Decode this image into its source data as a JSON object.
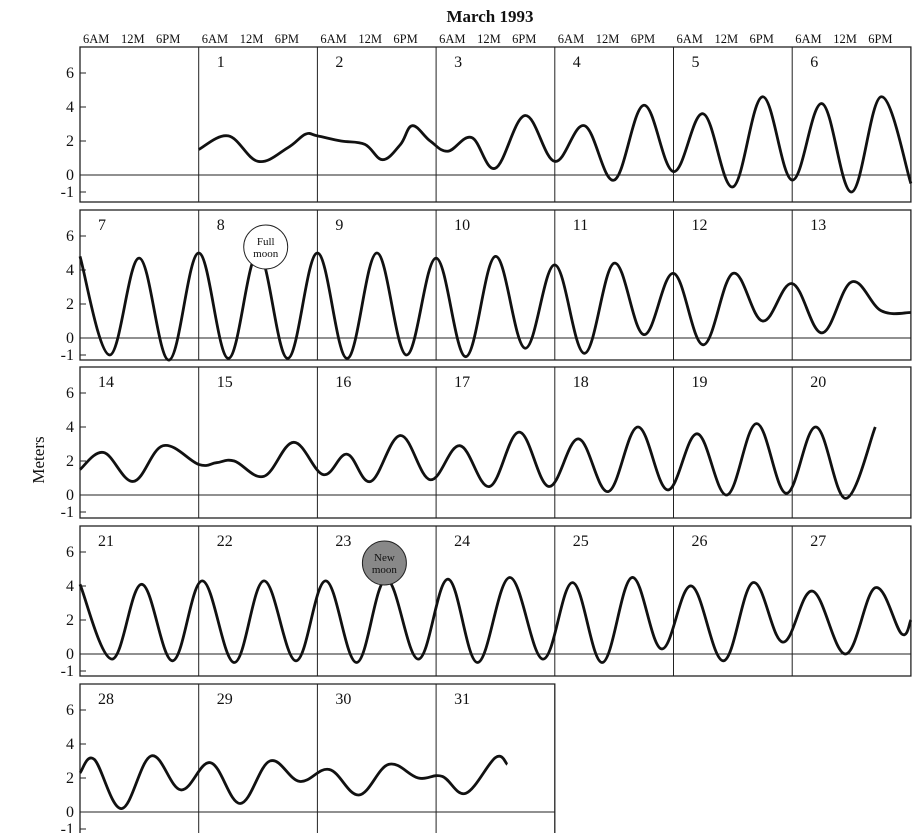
{
  "chart_data": {
    "type": "line",
    "title": "March 1993",
    "ylabel": "Meters",
    "ylim": [
      -1.5,
      7
    ],
    "yticks": [
      "6",
      "4",
      "2",
      "0",
      "-1"
    ],
    "time_labels": [
      "6AM",
      "12M",
      "6PM"
    ],
    "unit": "meters",
    "moon_events": [
      {
        "day": 8,
        "label_lines": [
          "Full",
          "moon"
        ],
        "fill": "#ffffff"
      },
      {
        "day": 23,
        "label_lines": [
          "New",
          "moon"
        ],
        "fill": "#888888"
      }
    ],
    "weeks": [
      {
        "days": [
          "",
          "1",
          "2",
          "3",
          "4",
          "5",
          "6"
        ],
        "curve_start_day_index": 1,
        "points": [
          [
            1.0,
            1.5
          ],
          [
            1.25,
            2.3
          ],
          [
            1.5,
            0.8
          ],
          [
            1.75,
            1.6
          ],
          [
            1.9,
            2.4
          ],
          [
            2.0,
            2.3
          ],
          [
            2.2,
            2.0
          ],
          [
            2.4,
            1.8
          ],
          [
            2.55,
            0.9
          ],
          [
            2.7,
            1.8
          ],
          [
            2.8,
            2.9
          ],
          [
            2.95,
            2.0
          ],
          [
            3.1,
            1.4
          ],
          [
            3.3,
            2.2
          ],
          [
            3.5,
            0.4
          ],
          [
            3.75,
            3.5
          ],
          [
            4.0,
            0.8
          ],
          [
            4.25,
            2.9
          ],
          [
            4.5,
            -0.3
          ],
          [
            4.75,
            4.1
          ],
          [
            5.0,
            0.2
          ],
          [
            5.25,
            3.6
          ],
          [
            5.5,
            -0.7
          ],
          [
            5.75,
            4.6
          ],
          [
            6.0,
            -0.3
          ],
          [
            6.25,
            4.2
          ],
          [
            6.5,
            -1.0
          ],
          [
            6.75,
            4.6
          ],
          [
            7.0,
            -0.5
          ]
        ]
      },
      {
        "days": [
          "7",
          "8",
          "9",
          "10",
          "11",
          "12",
          "13"
        ],
        "curve_start_day_index": 0,
        "points": [
          [
            0.0,
            4.8
          ],
          [
            0.25,
            -1.0
          ],
          [
            0.5,
            4.7
          ],
          [
            0.75,
            -1.3
          ],
          [
            1.0,
            5.0
          ],
          [
            1.25,
            -1.2
          ],
          [
            1.5,
            5.0
          ],
          [
            1.75,
            -1.2
          ],
          [
            2.0,
            5.0
          ],
          [
            2.25,
            -1.2
          ],
          [
            2.5,
            5.0
          ],
          [
            2.75,
            -1.0
          ],
          [
            3.0,
            4.7
          ],
          [
            3.25,
            -1.1
          ],
          [
            3.5,
            4.8
          ],
          [
            3.75,
            -0.6
          ],
          [
            4.0,
            4.3
          ],
          [
            4.25,
            -0.9
          ],
          [
            4.5,
            4.4
          ],
          [
            4.75,
            0.2
          ],
          [
            5.0,
            3.8
          ],
          [
            5.25,
            -0.4
          ],
          [
            5.5,
            3.8
          ],
          [
            5.75,
            1.0
          ],
          [
            6.0,
            3.2
          ],
          [
            6.25,
            0.3
          ],
          [
            6.5,
            3.3
          ],
          [
            6.75,
            1.6
          ],
          [
            7.0,
            1.5
          ]
        ]
      },
      {
        "days": [
          "14",
          "15",
          "16",
          "17",
          "18",
          "19",
          "20"
        ],
        "curve_start_day_index": 0,
        "points": [
          [
            0.0,
            1.5
          ],
          [
            0.2,
            2.5
          ],
          [
            0.45,
            0.8
          ],
          [
            0.7,
            2.9
          ],
          [
            1.0,
            1.8
          ],
          [
            1.15,
            1.9
          ],
          [
            1.3,
            2.0
          ],
          [
            1.55,
            1.1
          ],
          [
            1.8,
            3.1
          ],
          [
            2.05,
            1.2
          ],
          [
            2.25,
            2.4
          ],
          [
            2.45,
            0.8
          ],
          [
            2.7,
            3.5
          ],
          [
            2.95,
            0.9
          ],
          [
            3.2,
            2.9
          ],
          [
            3.45,
            0.5
          ],
          [
            3.7,
            3.7
          ],
          [
            3.95,
            0.5
          ],
          [
            4.2,
            3.3
          ],
          [
            4.45,
            0.2
          ],
          [
            4.7,
            4.0
          ],
          [
            4.95,
            0.3
          ],
          [
            5.2,
            3.6
          ],
          [
            5.45,
            0.0
          ],
          [
            5.7,
            4.2
          ],
          [
            5.95,
            0.1
          ],
          [
            6.2,
            4.0
          ],
          [
            6.45,
            -0.2
          ],
          [
            6.7,
            4.0
          ]
        ]
      },
      {
        "days": [
          "21",
          "22",
          "23",
          "24",
          "25",
          "26",
          "27"
        ],
        "curve_start_day_index": 0,
        "points": [
          [
            0.0,
            4.1
          ],
          [
            0.27,
            -0.3
          ],
          [
            0.52,
            4.1
          ],
          [
            0.78,
            -0.4
          ],
          [
            1.03,
            4.3
          ],
          [
            1.3,
            -0.5
          ],
          [
            1.55,
            4.3
          ],
          [
            1.82,
            -0.4
          ],
          [
            2.07,
            4.3
          ],
          [
            2.33,
            -0.5
          ],
          [
            2.58,
            4.4
          ],
          [
            2.85,
            -0.3
          ],
          [
            3.1,
            4.4
          ],
          [
            3.35,
            -0.5
          ],
          [
            3.62,
            4.5
          ],
          [
            3.9,
            -0.3
          ],
          [
            4.15,
            4.2
          ],
          [
            4.4,
            -0.5
          ],
          [
            4.65,
            4.5
          ],
          [
            4.9,
            0.3
          ],
          [
            5.15,
            4.0
          ],
          [
            5.42,
            -0.4
          ],
          [
            5.67,
            4.2
          ],
          [
            5.92,
            0.7
          ],
          [
            6.17,
            3.7
          ],
          [
            6.45,
            0.0
          ],
          [
            6.7,
            3.9
          ],
          [
            6.92,
            1.2
          ],
          [
            7.0,
            2.0
          ]
        ]
      },
      {
        "days": [
          "28",
          "29",
          "30",
          "31"
        ],
        "curve_start_day_index": 0,
        "points": [
          [
            0.0,
            2.3
          ],
          [
            0.12,
            3.1
          ],
          [
            0.35,
            0.2
          ],
          [
            0.6,
            3.3
          ],
          [
            0.85,
            1.3
          ],
          [
            1.1,
            2.9
          ],
          [
            1.35,
            0.5
          ],
          [
            1.6,
            3.0
          ],
          [
            1.85,
            1.8
          ],
          [
            2.1,
            2.5
          ],
          [
            2.35,
            1.0
          ],
          [
            2.6,
            2.8
          ],
          [
            2.85,
            2.0
          ],
          [
            3.05,
            2.1
          ],
          [
            3.25,
            1.1
          ],
          [
            3.5,
            3.2
          ],
          [
            3.6,
            2.8
          ]
        ]
      }
    ]
  }
}
